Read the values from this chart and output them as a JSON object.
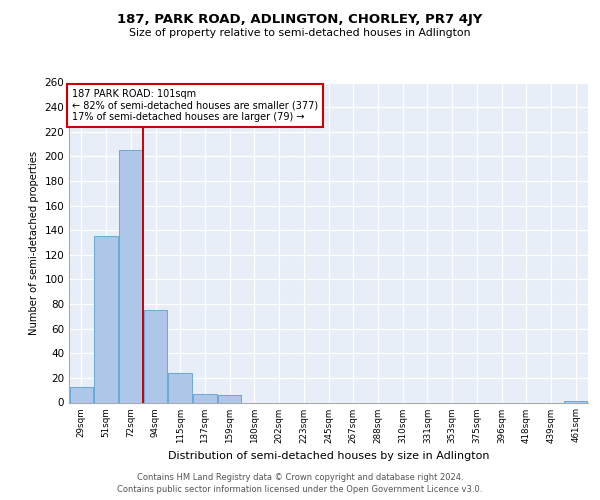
{
  "title": "187, PARK ROAD, ADLINGTON, CHORLEY, PR7 4JY",
  "subtitle": "Size of property relative to semi-detached houses in Adlington",
  "xlabel": "Distribution of semi-detached houses by size in Adlington",
  "ylabel": "Number of semi-detached properties",
  "bar_labels": [
    "29sqm",
    "51sqm",
    "72sqm",
    "94sqm",
    "115sqm",
    "137sqm",
    "159sqm",
    "180sqm",
    "202sqm",
    "223sqm",
    "245sqm",
    "267sqm",
    "288sqm",
    "310sqm",
    "331sqm",
    "353sqm",
    "375sqm",
    "396sqm",
    "418sqm",
    "439sqm",
    "461sqm"
  ],
  "bar_values": [
    13,
    135,
    205,
    75,
    24,
    7,
    6,
    0,
    0,
    0,
    0,
    0,
    0,
    0,
    0,
    0,
    0,
    0,
    0,
    0,
    1
  ],
  "bar_color": "#aec6e8",
  "bar_edge_color": "#5a9fd4",
  "vline_x": 2.5,
  "vline_color": "#cc0000",
  "annotation_text": "187 PARK ROAD: 101sqm\n← 82% of semi-detached houses are smaller (377)\n17% of semi-detached houses are larger (79) →",
  "annotation_box_color": "#ffffff",
  "annotation_box_edge": "#cc0000",
  "ylim": [
    0,
    260
  ],
  "yticks": [
    0,
    20,
    40,
    60,
    80,
    100,
    120,
    140,
    160,
    180,
    200,
    220,
    240,
    260
  ],
  "bg_color": "#e8eef8",
  "grid_color": "#ffffff",
  "footer_line1": "Contains HM Land Registry data © Crown copyright and database right 2024.",
  "footer_line2": "Contains public sector information licensed under the Open Government Licence v3.0."
}
